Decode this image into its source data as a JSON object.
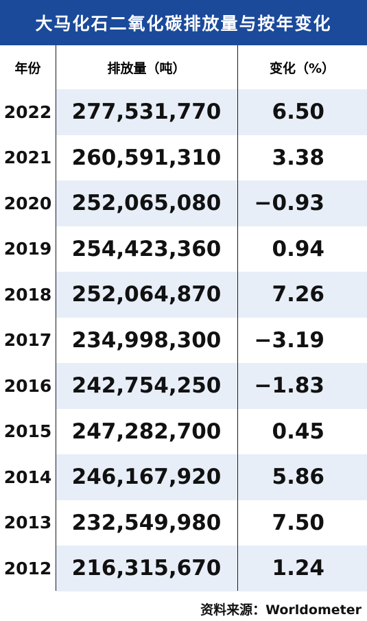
{
  "title": "大马化石二氧化碳排放量与按年变化",
  "headers": {
    "year": "年份",
    "emissions": "排放量（吨）",
    "change": "变化（%）"
  },
  "source": "资料来源：Worldometer",
  "chart_data": {
    "type": "table",
    "title": "大马化石二氧化碳排放量与按年变化",
    "columns": [
      "年份",
      "排放量（吨）",
      "变化（%）"
    ],
    "rows": [
      {
        "year": "2022",
        "emissions": "277,531,770",
        "change": "6.50"
      },
      {
        "year": "2021",
        "emissions": "260,591,310",
        "change": "3.38"
      },
      {
        "year": "2020",
        "emissions": "252,065,080",
        "change": "−0.93"
      },
      {
        "year": "2019",
        "emissions": "254,423,360",
        "change": "0.94"
      },
      {
        "year": "2018",
        "emissions": "252,064,870",
        "change": "7.26"
      },
      {
        "year": "2017",
        "emissions": "234,998,300",
        "change": "−3.19"
      },
      {
        "year": "2016",
        "emissions": "242,754,250",
        "change": "−1.83"
      },
      {
        "year": "2015",
        "emissions": "247,282,700",
        "change": "0.45"
      },
      {
        "year": "2014",
        "emissions": "246,167,920",
        "change": "5.86"
      },
      {
        "year": "2013",
        "emissions": "232,549,980",
        "change": "7.50"
      },
      {
        "year": "2012",
        "emissions": "216,315,670",
        "change": "1.24"
      }
    ],
    "colors": {
      "title_bg": "#1b4a9a",
      "stripe": "#e8eef8"
    }
  }
}
